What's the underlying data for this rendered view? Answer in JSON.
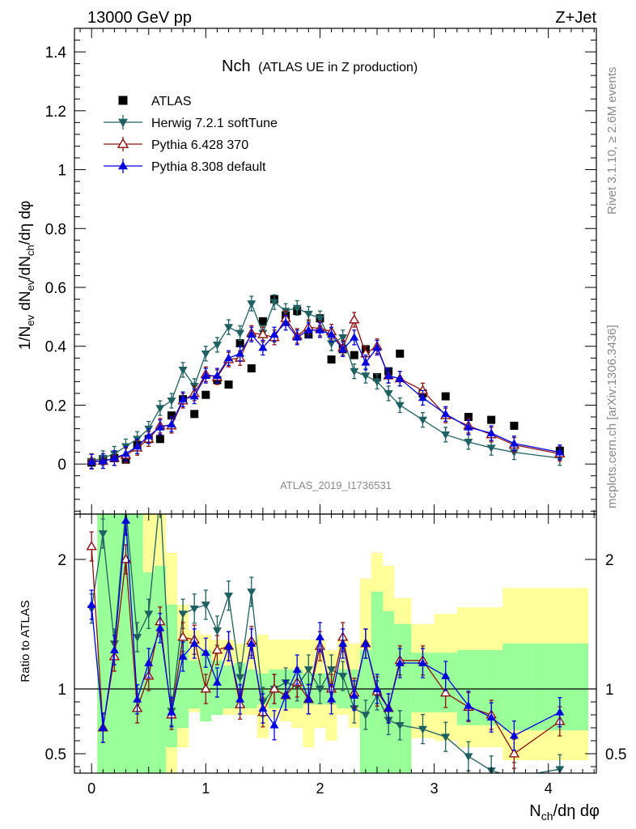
{
  "header": {
    "energy_label": "13000 GeV pp",
    "process_label": "Z+Jet",
    "plot_title_main": "Nch",
    "plot_title_sub": "(ATLAS UE in Z production)",
    "analysis_id": "ATLAS_2019_I1736531",
    "side_label_top": "Rivet 3.1.10, ≥ 2.6M events",
    "side_label_bottom": "mcplots.cern.ch [arXiv:1306.3436]"
  },
  "chart_data": {
    "type": "scatter",
    "xlabel": "N_ch/dη dφ",
    "ylabel": "1/N_ev dN_ev/dN_ch/dη dφ",
    "xlim": [
      -0.15,
      4.42
    ],
    "x_ticks": [
      "0",
      "1",
      "2",
      "3",
      "4"
    ],
    "main_panel": {
      "ylim": [
        -0.17,
        1.48
      ],
      "y_ticks": [
        "0",
        "0.2",
        "0.4",
        "0.6",
        "0.8",
        "1",
        "1.2",
        "1.4"
      ],
      "legend_position": "top-left",
      "x": [
        0.0,
        0.1,
        0.2,
        0.3,
        0.4,
        0.5,
        0.6,
        0.7,
        0.8,
        0.9,
        1.0,
        1.1,
        1.2,
        1.3,
        1.4,
        1.5,
        1.6,
        1.7,
        1.8,
        1.9,
        2.0,
        2.1,
        2.2,
        2.3,
        2.4,
        2.5,
        2.6,
        2.7,
        2.9,
        3.1,
        3.3,
        3.5,
        3.7,
        4.1
      ],
      "series": [
        {
          "name": "ATLAS",
          "color": "#000000",
          "marker": "square",
          "values": [
            0.005,
            0.015,
            0.02,
            0.015,
            0.065,
            0.085,
            0.085,
            0.165,
            0.22,
            0.17,
            0.235,
            0.285,
            0.27,
            0.41,
            0.325,
            0.485,
            0.56,
            0.505,
            0.52,
            0.44,
            0.495,
            0.355,
            0.39,
            0.37,
            0.39,
            0.295,
            0.315,
            0.375,
            0.24,
            0.23,
            0.16,
            0.15,
            0.13,
            0.045
          ]
        },
        {
          "name": "Herwig 7.2.1 softTune",
          "color": "#1f6060",
          "marker": "triangle-down",
          "values": [
            0.01,
            0.02,
            0.035,
            0.06,
            0.085,
            0.12,
            0.19,
            0.215,
            0.32,
            0.265,
            0.375,
            0.405,
            0.465,
            0.445,
            0.545,
            0.445,
            0.55,
            0.52,
            0.53,
            0.51,
            0.495,
            0.41,
            0.43,
            0.315,
            0.3,
            0.28,
            0.24,
            0.2,
            0.15,
            0.1,
            0.075,
            0.055,
            0.04,
            0.02
          ]
        },
        {
          "name": "Pythia 6.428 370",
          "color": "#8b1010",
          "marker": "triangle-up-open",
          "values": [
            0.01,
            0.01,
            0.02,
            0.03,
            0.055,
            0.085,
            0.13,
            0.13,
            0.215,
            0.24,
            0.305,
            0.295,
            0.355,
            0.36,
            0.445,
            0.44,
            0.43,
            0.495,
            0.435,
            0.465,
            0.46,
            0.45,
            0.395,
            0.49,
            0.375,
            0.4,
            0.3,
            0.29,
            0.25,
            0.165,
            0.13,
            0.1,
            0.065,
            0.035
          ]
        },
        {
          "name": "Pythia 8.308 default",
          "color": "#0000dd",
          "marker": "triangle-up",
          "values": [
            0.008,
            0.01,
            0.02,
            0.035,
            0.06,
            0.095,
            0.125,
            0.135,
            0.22,
            0.23,
            0.3,
            0.3,
            0.36,
            0.375,
            0.44,
            0.395,
            0.44,
            0.48,
            0.43,
            0.455,
            0.455,
            0.44,
            0.39,
            0.43,
            0.345,
            0.395,
            0.3,
            0.29,
            0.225,
            0.17,
            0.125,
            0.105,
            0.07,
            0.04
          ]
        }
      ]
    },
    "ratio_panel": {
      "ylabel": "Ratio to ATLAS",
      "ylim": [
        0.35,
        2.35
      ],
      "y_ticks": [
        "0.5",
        "1",
        "2"
      ],
      "reference_line": 1,
      "uncertainty_bands": {
        "bin_edges": [
          0.05,
          0.15,
          0.25,
          0.35,
          0.45,
          0.55,
          0.65,
          0.75,
          0.85,
          0.95,
          1.05,
          1.15,
          1.25,
          1.35,
          1.45,
          1.55,
          1.65,
          1.75,
          1.85,
          1.95,
          2.05,
          2.15,
          2.25,
          2.35,
          2.45,
          2.55,
          2.65,
          2.8,
          3.0,
          3.2,
          3.4,
          3.6,
          3.85,
          4.35
        ],
        "stat_band_color": "#99ff99",
        "total_band_color": "#ffff99",
        "stat_lo": [
          0.35,
          0.35,
          0.35,
          0.35,
          0.35,
          0.35,
          0.55,
          0.7,
          0.85,
          0.75,
          0.8,
          0.85,
          0.85,
          0.85,
          0.88,
          0.85,
          0.85,
          0.85,
          0.88,
          0.88,
          0.88,
          0.85,
          0.85,
          0.35,
          0.35,
          0.35,
          0.35,
          0.82,
          0.82,
          0.72,
          0.72,
          0.68,
          0.68
        ],
        "stat_hi": [
          2.35,
          2.35,
          2.35,
          2.35,
          1.9,
          1.95,
          1.65,
          1.38,
          1.22,
          1.3,
          1.22,
          1.18,
          1.2,
          1.15,
          1.12,
          1.15,
          1.15,
          1.15,
          1.12,
          1.12,
          1.12,
          1.15,
          1.15,
          1.3,
          1.75,
          1.6,
          1.5,
          1.28,
          1.28,
          1.3,
          1.3,
          1.35,
          1.35
        ],
        "sys_lo": [
          0.35,
          0.35,
          0.35,
          0.35,
          0.35,
          0.35,
          0.35,
          0.55,
          0.82,
          0.75,
          0.8,
          0.8,
          0.8,
          0.8,
          0.62,
          0.78,
          0.75,
          0.7,
          0.55,
          0.7,
          0.6,
          0.8,
          0.7,
          0.35,
          0.35,
          0.35,
          0.35,
          0.62,
          0.6,
          0.55,
          0.55,
          0.45,
          0.45
        ],
        "sys_hi": [
          2.35,
          2.35,
          2.35,
          2.35,
          2.35,
          2.35,
          2.05,
          1.65,
          1.45,
          1.42,
          1.38,
          1.38,
          1.35,
          1.38,
          1.42,
          1.38,
          1.38,
          1.38,
          1.38,
          1.38,
          1.3,
          1.38,
          1.35,
          1.85,
          2.05,
          1.95,
          1.7,
          1.5,
          1.58,
          1.63,
          1.63,
          1.78,
          1.78
        ]
      },
      "series": [
        {
          "name": "Herwig 7.2.1 softTune",
          "values": [
            1.62,
            2.2,
            1.35,
            2.4,
            1.4,
            1.58,
            2.5,
            0.83,
            1.58,
            1.62,
            1.65,
            1.45,
            1.72,
            1.09,
            1.75,
            0.9,
            1.0,
            1.05,
            1.02,
            1.15,
            1.0,
            1.15,
            1.1,
            0.85,
            0.8,
            0.95,
            0.76,
            0.72,
            0.69,
            0.63,
            0.48,
            0.37,
            0.32,
            0.38
          ]
        },
        {
          "name": "Pythia 6.428 370",
          "values": [
            2.1,
            0.7,
            1.25,
            2.0,
            0.85,
            1.1,
            1.52,
            0.8,
            1.4,
            1.38,
            1.0,
            1.3,
            1.33,
            0.88,
            1.37,
            0.82,
            1.0,
            0.95,
            1.05,
            0.92,
            1.33,
            1.0,
            1.4,
            0.97,
            1.35,
            0.98,
            0.85,
            1.22,
            1.22,
            0.97,
            0.86,
            0.8,
            0.5,
            0.75
          ]
        },
        {
          "name": "Pythia 8.308 default",
          "values": [
            1.65,
            0.7,
            1.3,
            2.3,
            0.92,
            1.2,
            1.47,
            0.82,
            1.25,
            1.35,
            1.28,
            1.05,
            1.33,
            0.92,
            1.35,
            0.85,
            0.72,
            0.95,
            1.15,
            0.92,
            1.4,
            0.92,
            1.35,
            0.95,
            1.35,
            1.0,
            0.85,
            1.2,
            1.2,
            1.1,
            0.87,
            0.78,
            0.64,
            0.82
          ]
        }
      ]
    }
  }
}
